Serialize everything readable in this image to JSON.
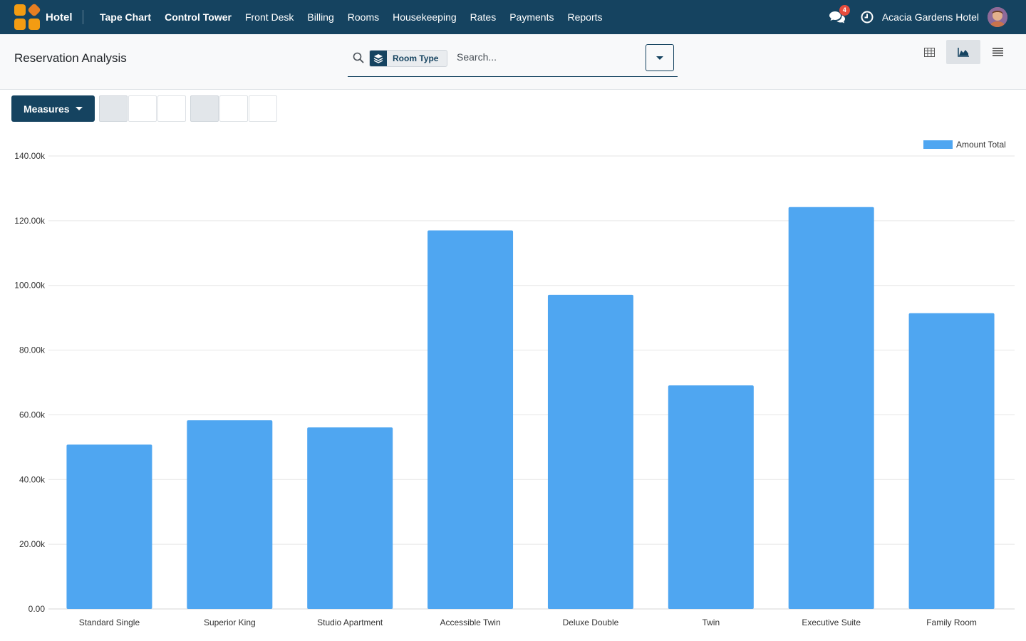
{
  "app": {
    "name": "Hotel"
  },
  "nav": [
    {
      "label": "Tape Chart",
      "strong": true
    },
    {
      "label": "Control Tower",
      "strong": true
    },
    {
      "label": "Front Desk",
      "strong": false
    },
    {
      "label": "Billing",
      "strong": false
    },
    {
      "label": "Rooms",
      "strong": false
    },
    {
      "label": "Housekeeping",
      "strong": false
    },
    {
      "label": "Rates",
      "strong": false
    },
    {
      "label": "Payments",
      "strong": false
    },
    {
      "label": "Reports",
      "strong": false
    }
  ],
  "systray": {
    "message_count": "4",
    "company": "Acacia Gardens Hotel"
  },
  "page": {
    "title": "Reservation Analysis"
  },
  "search": {
    "facet_label": "Room Type",
    "facet_close": "",
    "placeholder": "Search..."
  },
  "toolbar": {
    "measures_label": "Measures",
    "glyph": ""
  },
  "colors": {
    "navbar": "#154360",
    "bar": "#4fa6f1"
  },
  "chart_data": {
    "type": "bar",
    "categories": [
      "Standard Single",
      "Superior King",
      "Studio Apartment",
      "Accessible Twin",
      "Deluxe Double",
      "Twin",
      "Executive Suite",
      "Family Room"
    ],
    "series": [
      {
        "name": "Amount Total",
        "values": [
          50800,
          58300,
          56100,
          117000,
          97100,
          69100,
          124200,
          91400
        ]
      }
    ],
    "ylim": [
      0,
      140000
    ],
    "yticks": [
      "0.00",
      "20.00k",
      "40.00k",
      "60.00k",
      "80.00k",
      "100.00k",
      "120.00k",
      "140.00k"
    ],
    "ytick_values": [
      0,
      20000,
      40000,
      60000,
      80000,
      100000,
      120000,
      140000
    ],
    "grid": true,
    "legend": "top-right"
  }
}
